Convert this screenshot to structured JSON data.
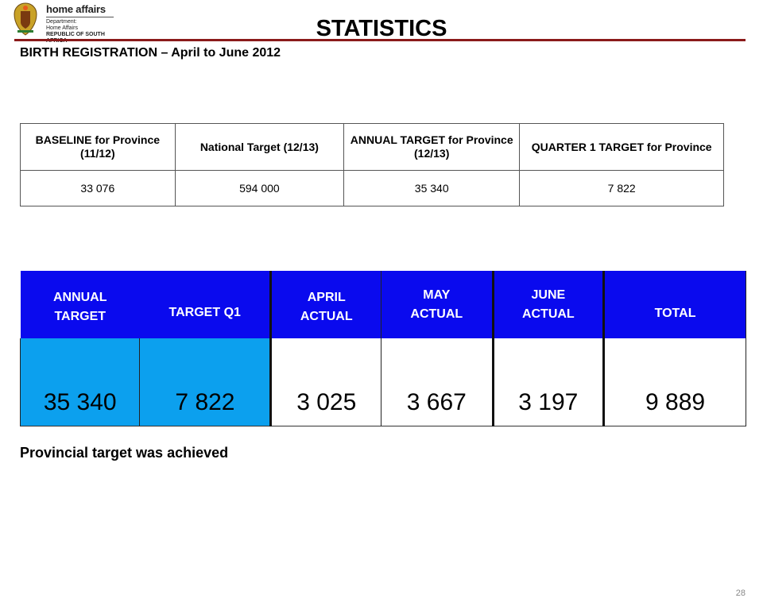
{
  "logo": {
    "title": "home affairs",
    "lines": [
      "Department:",
      "Home Affairs",
      "REPUBLIC OF SOUTH AFRICA"
    ]
  },
  "title": "STATISTICS",
  "subtitle": "BIRTH REGISTRATION – April to June 2012",
  "targets_table": {
    "headers": [
      "BASELINE for Province (11/12)",
      "National Target (12/13)",
      "ANNUAL TARGET for Province (12/13)",
      "QUARTER 1 TARGET for Province"
    ],
    "values": [
      "33 076",
      "594 000",
      "35 340",
      "7 822"
    ]
  },
  "actuals_table": {
    "headers": [
      "ANNUAL TARGET",
      "TARGET Q1",
      "APRIL ACTUAL",
      "MAY ACTUAL",
      "JUNE ACTUAL",
      "TOTAL"
    ],
    "values": [
      "35 340",
      "7 822",
      "3 025",
      "3 667",
      "3 197",
      "9 889"
    ]
  },
  "note": "Provincial target was achieved",
  "page_number": "28",
  "colors": {
    "header_blue": "#0a0aee",
    "cell_cyan": "#0ca0ee",
    "rule": "#8b1a1a"
  }
}
